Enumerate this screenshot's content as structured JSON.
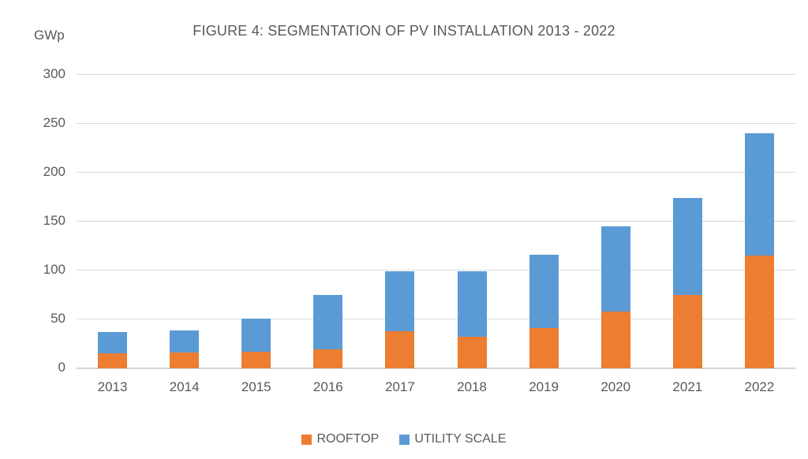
{
  "figure": {
    "title": "FIGURE 4: SEGMENTATION OF PV INSTALLATION 2013 - 2022",
    "y_axis_unit": "GWp"
  },
  "chart_data": {
    "type": "bar",
    "stacked": true,
    "title": "FIGURE 4: SEGMENTATION OF PV INSTALLATION 2013 - 2022",
    "xlabel": "",
    "ylabel": "GWp",
    "categories": [
      "2013",
      "2014",
      "2015",
      "2016",
      "2017",
      "2018",
      "2019",
      "2020",
      "2021",
      "2022"
    ],
    "series": [
      {
        "name": "ROOFTOP",
        "color": "#ED7D31",
        "values": [
          15,
          16,
          17,
          19,
          38,
          32,
          41,
          58,
          75,
          115
        ]
      },
      {
        "name": "UTILITY SCALE",
        "color": "#5B9BD5",
        "values": [
          22,
          23,
          34,
          56,
          61,
          67,
          75,
          87,
          99,
          125
        ]
      }
    ],
    "stack_totals": [
      37,
      39,
      51,
      75,
      99,
      99,
      116,
      145,
      174,
      240
    ],
    "ylim": [
      0,
      300
    ],
    "y_ticks": [
      0,
      50,
      100,
      150,
      200,
      250,
      300
    ],
    "grid": true,
    "legend_position": "bottom",
    "colors": {
      "rooftop": "#ED7D31",
      "utility_scale": "#5B9BD5",
      "gridline": "#D9D9D9",
      "text": "#595959",
      "background": "#FFFFFF"
    }
  }
}
